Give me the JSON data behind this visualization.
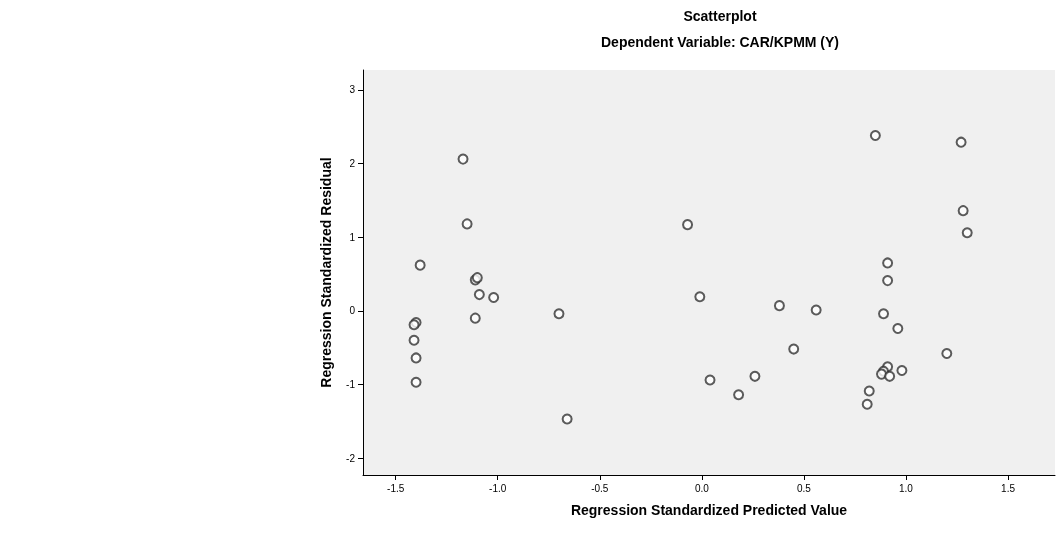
{
  "chart_data": {
    "type": "scatter",
    "title": "Scatterplot",
    "subtitle": "Dependent Variable: CAR/KPMM (Y)",
    "xlabel": "Regression Standardized Predicted Value",
    "ylabel": "Regression Standardized Residual",
    "x": [
      -1.17,
      -1.15,
      -1.38,
      -1.11,
      -1.1,
      -1.09,
      -1.02,
      -1.11,
      -1.4,
      -1.41,
      -1.41,
      -1.4,
      -1.4,
      -0.7,
      -0.66,
      -0.07,
      -0.01,
      0.04,
      0.18,
      0.26,
      0.38,
      0.45,
      0.56,
      0.85,
      1.27,
      1.28,
      1.3,
      0.91,
      0.91,
      0.89,
      0.96,
      1.2,
      0.91,
      0.89,
      0.88,
      0.92,
      0.98,
      0.82,
      0.81
    ],
    "values": [
      2.06,
      1.18,
      0.62,
      0.42,
      0.45,
      0.22,
      0.18,
      -0.1,
      -0.16,
      -0.19,
      -0.4,
      -0.64,
      -0.97,
      -0.04,
      -1.47,
      1.17,
      0.19,
      -0.94,
      -1.14,
      -0.89,
      0.07,
      -0.52,
      0.01,
      2.38,
      2.29,
      1.36,
      1.06,
      0.65,
      0.41,
      -0.04,
      -0.24,
      -0.58,
      -0.76,
      -0.82,
      -0.86,
      -0.89,
      -0.81,
      -1.09,
      -1.27
    ],
    "color": "#333333",
    "marker": "circle",
    "grid": false,
    "xlim": [
      -1.66,
      1.73
    ],
    "xticks": [
      {
        "value": -1.5,
        "label": "-1.5"
      },
      {
        "value": -1,
        "label": "-1.0"
      },
      {
        "value": -0.5,
        "label": "-0.5"
      },
      {
        "value": 0,
        "label": "0.0"
      },
      {
        "value": 0.5,
        "label": "0.5"
      },
      {
        "value": 1,
        "label": "1.0"
      },
      {
        "value": 1.5,
        "label": "1.5"
      }
    ],
    "ylim": [
      -2.23,
      3.27
    ],
    "yticks": [
      -2,
      -1,
      0,
      1,
      2,
      3
    ]
  }
}
